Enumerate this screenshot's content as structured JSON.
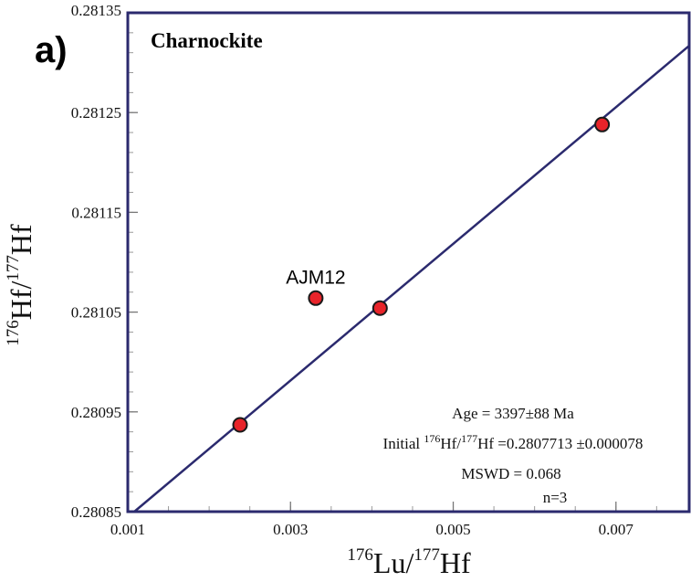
{
  "chart_data": {
    "type": "scatter",
    "panel_label": "a)",
    "title": "Charnockite",
    "xlabel": {
      "sup1": "176",
      "base1": "Lu/",
      "sup2": "177",
      "base2": "Hf"
    },
    "ylabel": {
      "sup1": "176",
      "base1": "Hf/",
      "sup2": "177",
      "base2": "Hf"
    },
    "xlim": [
      0.001,
      0.0079
    ],
    "ylim": [
      0.28085,
      0.28135
    ],
    "xticks": [
      "0.001",
      "0.003",
      "0.005",
      "0.007"
    ],
    "xtick_values": [
      0.001,
      0.003,
      0.005,
      0.007
    ],
    "yticks": [
      "0.28085",
      "0.28095",
      "0.28105",
      "0.28115",
      "0.28125",
      "0.28135"
    ],
    "ytick_values": [
      0.28085,
      0.28095,
      0.28105,
      0.28115,
      0.28125,
      0.28135
    ],
    "points": [
      {
        "x": 0.00238,
        "y": 0.280937
      },
      {
        "x": 0.00331,
        "y": 0.281064
      },
      {
        "x": 0.0041,
        "y": 0.281054
      },
      {
        "x": 0.00683,
        "y": 0.281238
      }
    ],
    "point_color": "#e8242a",
    "line_color": "#2b2a6e",
    "isochron": {
      "x": [
        0.00108,
        0.0079
      ],
      "y": [
        0.28085,
        0.281317
      ]
    },
    "annotations": [
      {
        "text": "AJM12",
        "x": 0.00331,
        "y": 0.281064
      }
    ],
    "stats": {
      "age": "Age = 3397±88 Ma",
      "initial_prefix": "Initial ",
      "initial_sup1": "176",
      "initial_mid": "Hf/",
      "initial_sup2": "177",
      "initial_suffix": "Hf =0.2807713 ±0.000078",
      "mswd": "MSWD = 0.068",
      "n": "n=3"
    }
  }
}
